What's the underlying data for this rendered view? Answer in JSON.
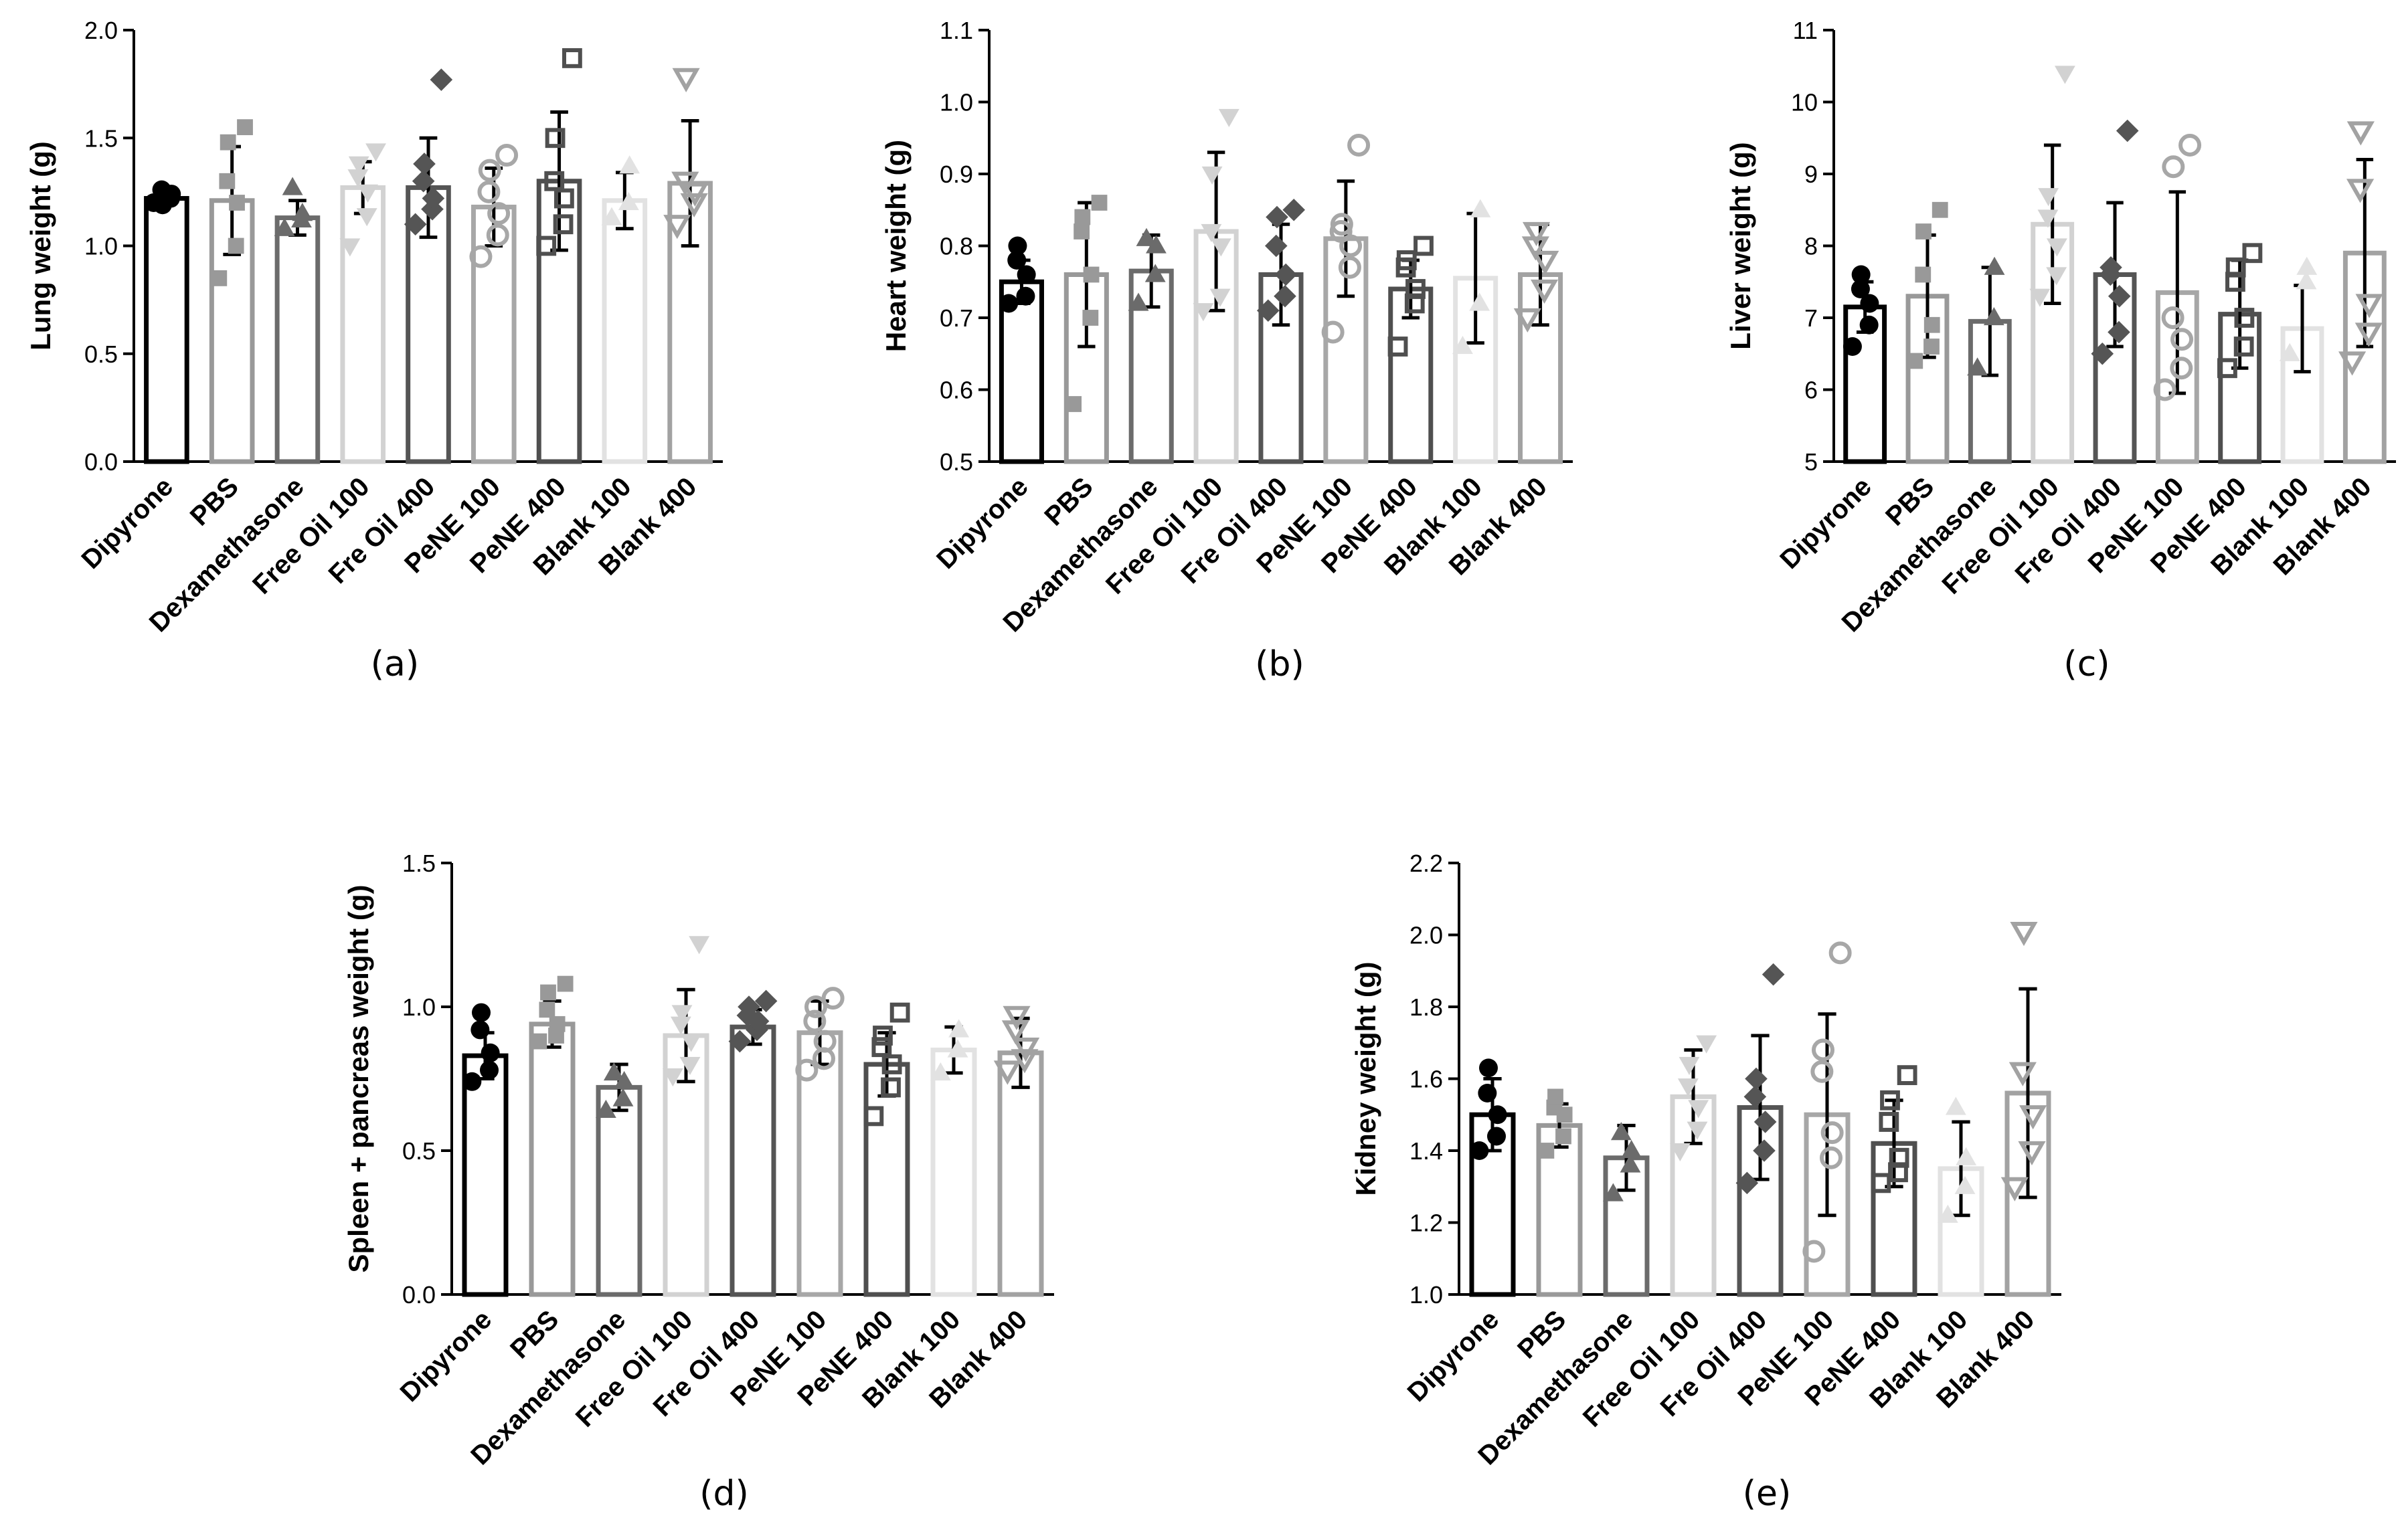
{
  "chart_data": [
    {
      "type": "bar",
      "panel": "(a)",
      "ylabel": "Lung weight (g)",
      "ylim": [
        0,
        2.0
      ],
      "yticks": [
        "0.0",
        "0.5",
        "1.0",
        "1.5",
        "2.0"
      ],
      "categories": [
        "Dipyrone",
        "PBS",
        "Dexamethasone",
        "Free Oil 100",
        "Fre Oil 400",
        "PeNE 100",
        "PeNE 400",
        "Blank 100",
        "Blank 400"
      ],
      "means": [
        1.22,
        1.21,
        1.13,
        1.27,
        1.27,
        1.18,
        1.3,
        1.21,
        1.29
      ],
      "sd": [
        0.03,
        0.25,
        0.08,
        0.12,
        0.23,
        0.18,
        0.32,
        0.13,
        0.29
      ],
      "points": [
        [
          1.2,
          1.22,
          1.24,
          1.26,
          1.19
        ],
        [
          0.85,
          1.0,
          1.2,
          1.3,
          1.48,
          1.55
        ],
        [
          1.08,
          1.12,
          1.15,
          1.27
        ],
        [
          1.0,
          1.14,
          1.25,
          1.32,
          1.38,
          1.44
        ],
        [
          1.1,
          1.17,
          1.22,
          1.3,
          1.38,
          1.77
        ],
        [
          0.95,
          1.05,
          1.15,
          1.25,
          1.35,
          1.42
        ],
        [
          1.0,
          1.1,
          1.22,
          1.3,
          1.5,
          1.87
        ],
        [
          1.13,
          1.2,
          1.37
        ],
        [
          1.1,
          1.2,
          1.25,
          1.3,
          1.78
        ]
      ]
    },
    {
      "type": "bar",
      "panel": "(b)",
      "ylabel": "Heart weight (g)",
      "ylim": [
        0.5,
        1.1
      ],
      "yticks": [
        "0.5",
        "0.6",
        "0.7",
        "0.8",
        "0.9",
        "1.0",
        "1.1"
      ],
      "categories": [
        "Dipyrone",
        "PBS",
        "Dexamethasone",
        "Free Oil 100",
        "Fre Oil 400",
        "PeNE 100",
        "PeNE 400",
        "Blank 100",
        "Blank 400"
      ],
      "means": [
        0.75,
        0.76,
        0.765,
        0.82,
        0.76,
        0.81,
        0.74,
        0.755,
        0.76
      ],
      "sd": [
        0.03,
        0.1,
        0.05,
        0.11,
        0.07,
        0.08,
        0.04,
        0.09,
        0.07
      ],
      "points": [
        [
          0.72,
          0.73,
          0.76,
          0.78,
          0.8
        ],
        [
          0.58,
          0.7,
          0.76,
          0.82,
          0.84,
          0.86
        ],
        [
          0.72,
          0.76,
          0.8,
          0.81
        ],
        [
          0.71,
          0.73,
          0.8,
          0.82,
          0.9,
          0.98
        ],
        [
          0.71,
          0.73,
          0.76,
          0.8,
          0.84,
          0.85
        ],
        [
          0.68,
          0.77,
          0.8,
          0.82,
          0.83,
          0.94
        ],
        [
          0.66,
          0.72,
          0.74,
          0.77,
          0.78,
          0.8
        ],
        [
          0.66,
          0.72,
          0.85
        ],
        [
          0.7,
          0.74,
          0.78,
          0.8,
          0.82
        ]
      ]
    },
    {
      "type": "bar",
      "panel": "(c)",
      "ylabel": "Liver weight (g)",
      "ylim": [
        5,
        11
      ],
      "yticks": [
        "5",
        "6",
        "7",
        "8",
        "9",
        "10",
        "11"
      ],
      "categories": [
        "Dipyrone",
        "PBS",
        "Dexamethasone",
        "Free Oil 100",
        "Fre Oil 400",
        "PeNE 100",
        "PeNE 400",
        "Blank 100",
        "Blank 400"
      ],
      "means": [
        7.15,
        7.3,
        6.95,
        8.3,
        7.6,
        7.35,
        7.05,
        6.85,
        7.9
      ],
      "sd": [
        0.35,
        0.85,
        0.75,
        1.1,
        1.0,
        1.4,
        0.75,
        0.6,
        1.3
      ],
      "points": [
        [
          6.6,
          6.9,
          7.2,
          7.4,
          7.6
        ],
        [
          6.4,
          6.6,
          6.9,
          7.6,
          8.2,
          8.5
        ],
        [
          6.3,
          7.0,
          7.7
        ],
        [
          7.3,
          7.6,
          8.0,
          8.4,
          8.7,
          10.4
        ],
        [
          6.5,
          6.8,
          7.3,
          7.6,
          7.7,
          9.6
        ],
        [
          6.0,
          6.3,
          6.7,
          7.0,
          9.1,
          9.4
        ],
        [
          6.3,
          6.6,
          7.0,
          7.5,
          7.7,
          7.9
        ],
        [
          6.5,
          7.5,
          7.7
        ],
        [
          6.4,
          6.8,
          7.2,
          8.8,
          9.6
        ]
      ]
    },
    {
      "type": "bar",
      "panel": "(d)",
      "ylabel": "Spleen + pancreas weight (g)",
      "ylim": [
        0,
        1.5
      ],
      "yticks": [
        "0.0",
        "0.5",
        "1.0",
        "1.5"
      ],
      "categories": [
        "Dipyrone",
        "PBS",
        "Dexamethasone",
        "Free Oil 100",
        "Fre Oil 400",
        "PeNE 100",
        "PeNE 400",
        "Blank 100",
        "Blank 400"
      ],
      "means": [
        0.83,
        0.94,
        0.72,
        0.9,
        0.93,
        0.91,
        0.8,
        0.85,
        0.84
      ],
      "sd": [
        0.08,
        0.08,
        0.08,
        0.16,
        0.06,
        0.11,
        0.11,
        0.08,
        0.12
      ],
      "points": [
        [
          0.74,
          0.78,
          0.84,
          0.92,
          0.98
        ],
        [
          0.88,
          0.9,
          0.94,
          0.99,
          1.05,
          1.08
        ],
        [
          0.64,
          0.68,
          0.74,
          0.77
        ],
        [
          0.76,
          0.8,
          0.88,
          0.94,
          0.98,
          1.22
        ],
        [
          0.88,
          0.92,
          0.95,
          0.97,
          1.0,
          1.02
        ],
        [
          0.78,
          0.82,
          0.88,
          0.95,
          1.0,
          1.03
        ],
        [
          0.62,
          0.72,
          0.8,
          0.86,
          0.9,
          0.98
        ],
        [
          0.77,
          0.85,
          0.92
        ],
        [
          0.78,
          0.82,
          0.86,
          0.92,
          0.97
        ]
      ]
    },
    {
      "type": "bar",
      "panel": "(e)",
      "ylabel": "Kidney weight (g)",
      "ylim": [
        1.0,
        2.2
      ],
      "yticks": [
        "1.0",
        "1.2",
        "1.4",
        "1.6",
        "1.8",
        "2.0",
        "2.2"
      ],
      "categories": [
        "Dipyrone",
        "PBS",
        "Dexamethasone",
        "Free Oil 100",
        "Fre Oil 400",
        "PeNE 100",
        "PeNE 400",
        "Blank 100",
        "Blank 400"
      ],
      "means": [
        1.5,
        1.47,
        1.38,
        1.55,
        1.52,
        1.5,
        1.42,
        1.35,
        1.56
      ],
      "sd": [
        0.1,
        0.06,
        0.09,
        0.13,
        0.2,
        0.28,
        0.12,
        0.13,
        0.29
      ],
      "points": [
        [
          1.4,
          1.44,
          1.5,
          1.56,
          1.63
        ],
        [
          1.4,
          1.44,
          1.5,
          1.52,
          1.55
        ],
        [
          1.28,
          1.36,
          1.4,
          1.45
        ],
        [
          1.4,
          1.46,
          1.52,
          1.58,
          1.64,
          1.7
        ],
        [
          1.31,
          1.4,
          1.48,
          1.55,
          1.6,
          1.89
        ],
        [
          1.12,
          1.38,
          1.45,
          1.62,
          1.68,
          1.95
        ],
        [
          1.31,
          1.34,
          1.38,
          1.48,
          1.54,
          1.61
        ],
        [
          1.22,
          1.3,
          1.38,
          1.52
        ],
        [
          1.3,
          1.4,
          1.5,
          1.62,
          2.01
        ]
      ]
    }
  ],
  "style": {
    "group_colors": [
      "#000000",
      "#999999",
      "#6b6b6b",
      "#d2d2d2",
      "#555555",
      "#a7a7a7",
      "#4f4f4f",
      "#e2e2e2",
      "#a2a2a2"
    ],
    "group_markers": [
      "circle",
      "square",
      "triangle",
      "triangle-down",
      "diamond",
      "circle-open",
      "square-open",
      "triangle",
      "triangle-down-open"
    ]
  }
}
